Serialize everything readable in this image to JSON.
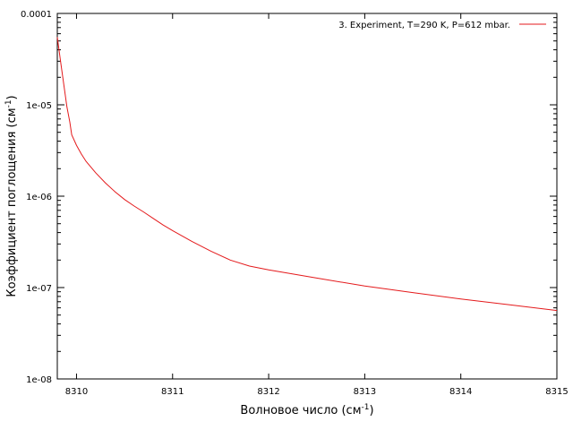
{
  "chart_data": {
    "type": "line",
    "xlabel": "Волновое число (см",
    "xlabel_sup": "-1",
    "xlabel_tail": ")",
    "ylabel": "Коэффициент поглощения (см",
    "ylabel_sup": "-1",
    "ylabel_tail": ")",
    "xlim": [
      8309.8,
      8315
    ],
    "ylim": [
      1e-08,
      0.0001
    ],
    "yscale": "log",
    "grid": false,
    "legend_position": "top-right",
    "x_ticks": [
      8310,
      8311,
      8312,
      8313,
      8314,
      8315
    ],
    "x_tick_labels": [
      "8310",
      "8311",
      "8312",
      "8313",
      "8314",
      "8315"
    ],
    "y_ticks": [
      1e-08,
      1e-07,
      1e-06,
      1e-05,
      0.0001
    ],
    "y_tick_labels": [
      "1e-08",
      "1e-07",
      "1e-06",
      "1e-05",
      "0.0001"
    ],
    "series": [
      {
        "name": "3. Experiment, T=290 K, P=612 mbar.",
        "color": "#e41a1c",
        "x": [
          8309.8,
          8309.83,
          8309.87,
          8309.9,
          8309.93,
          8309.95,
          8310.0,
          8310.05,
          8310.1,
          8310.2,
          8310.3,
          8310.4,
          8310.5,
          8310.6,
          8310.7,
          8310.8,
          8310.9,
          8311.0,
          8311.2,
          8311.4,
          8311.6,
          8311.8,
          8312.0,
          8312.5,
          8313.0,
          8313.5,
          8314.0,
          8314.5,
          8315.0
        ],
        "y": [
          5.5e-05,
          3.2e-05,
          1.6e-05,
          9.5e-06,
          6.5e-06,
          4.7e-06,
          3.6e-06,
          2.9e-06,
          2.4e-06,
          1.8e-06,
          1.4e-06,
          1.12e-06,
          9.2e-07,
          7.8e-07,
          6.7e-07,
          5.7e-07,
          4.85e-07,
          4.2e-07,
          3.2e-07,
          2.5e-07,
          2e-07,
          1.72e-07,
          1.56e-07,
          1.27e-07,
          1.04e-07,
          8.8e-08,
          7.5e-08,
          6.5e-08,
          5.6e-08
        ]
      }
    ]
  }
}
